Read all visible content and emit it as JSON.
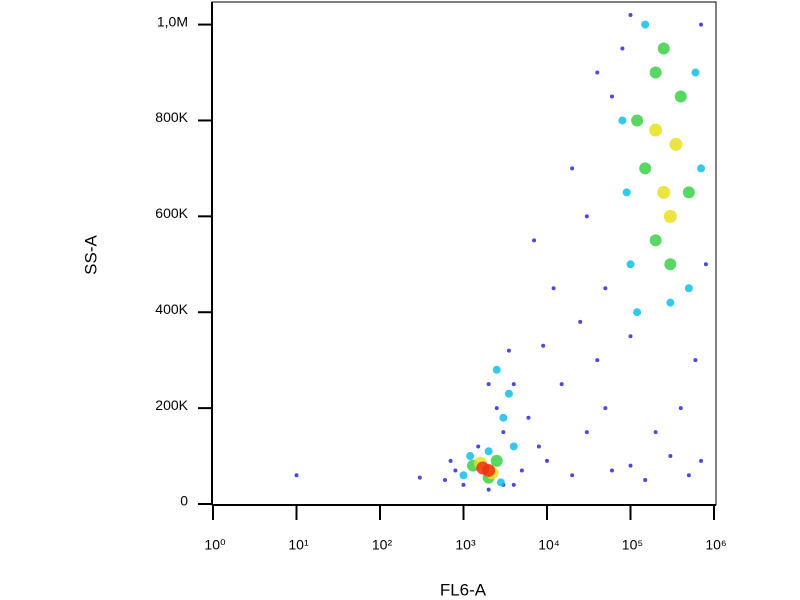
{
  "chart_data": {
    "type": "scatter",
    "x_label": "FL6-A",
    "y_label": "SS-A",
    "xscale": "log",
    "xlim": [
      1,
      1000000
    ],
    "xticks": [
      {
        "value": 1,
        "label": "10⁰"
      },
      {
        "value": 10,
        "label": "10¹"
      },
      {
        "value": 100,
        "label": "10²"
      },
      {
        "value": 1000,
        "label": "10³"
      },
      {
        "value": 10000,
        "label": "10⁴"
      },
      {
        "value": 100000,
        "label": "10⁵"
      },
      {
        "value": 1000000,
        "label": "10⁶"
      }
    ],
    "ylim": [
      0,
      1045000
    ],
    "yticks": [
      0,
      {
        "value": 200000,
        "label": "200K"
      },
      {
        "value": 400000,
        "label": "400K"
      },
      {
        "value": 600000,
        "label": "600K"
      },
      {
        "value": 800000,
        "label": "800K"
      },
      {
        "value": 1000000,
        "label": "1,0M"
      }
    ],
    "series": [
      {
        "color": "#2a2ad8",
        "x": [
          10,
          300,
          800,
          1000,
          700,
          4000,
          5000,
          3000,
          2500,
          4000,
          3500,
          6000,
          8000,
          10000,
          20000,
          15000,
          30000,
          40000,
          50000,
          30000,
          20000,
          60000,
          80000,
          100000,
          700000,
          800000,
          600000,
          400000,
          200000,
          100000,
          60000,
          500000,
          700000,
          300000,
          150000,
          40000,
          25000,
          12000,
          9000,
          7000,
          100000,
          50000,
          2000,
          1500,
          3000,
          600,
          2000
        ],
        "values": [
          60000,
          55000,
          70000,
          40000,
          90000,
          40000,
          70000,
          150000,
          200000,
          250000,
          320000,
          180000,
          120000,
          90000,
          60000,
          250000,
          150000,
          300000,
          450000,
          600000,
          700000,
          850000,
          950000,
          1020000,
          1000000,
          500000,
          300000,
          200000,
          150000,
          80000,
          70000,
          60000,
          90000,
          100000,
          50000,
          900000,
          380000,
          450000,
          330000,
          550000,
          350000,
          200000,
          250000,
          120000,
          40000,
          50000,
          30000
        ]
      },
      {
        "color": "#10c0e8",
        "x": [
          2000,
          3000,
          3500,
          2500,
          4000,
          1000,
          1200,
          2800,
          100000,
          80000,
          600000,
          500000,
          150000,
          90000,
          700000,
          120000,
          300000
        ],
        "values": [
          110000,
          180000,
          230000,
          280000,
          120000,
          60000,
          100000,
          45000,
          500000,
          800000,
          900000,
          450000,
          1000000,
          650000,
          700000,
          400000,
          420000
        ]
      },
      {
        "color": "#3cd048",
        "x": [
          1300,
          2500,
          2000,
          150000,
          200000,
          400000,
          200000,
          300000,
          120000,
          500000,
          250000
        ],
        "values": [
          80000,
          90000,
          55000,
          700000,
          550000,
          850000,
          900000,
          500000,
          800000,
          650000,
          950000
        ]
      },
      {
        "color": "#e8e020",
        "x": [
          1600,
          2200,
          250000,
          350000,
          300000,
          200000
        ],
        "values": [
          85000,
          65000,
          650000,
          750000,
          600000,
          780000
        ]
      },
      {
        "color": "#f03010",
        "x": [
          1700,
          2000
        ],
        "values": [
          75000,
          70000
        ]
      }
    ]
  }
}
